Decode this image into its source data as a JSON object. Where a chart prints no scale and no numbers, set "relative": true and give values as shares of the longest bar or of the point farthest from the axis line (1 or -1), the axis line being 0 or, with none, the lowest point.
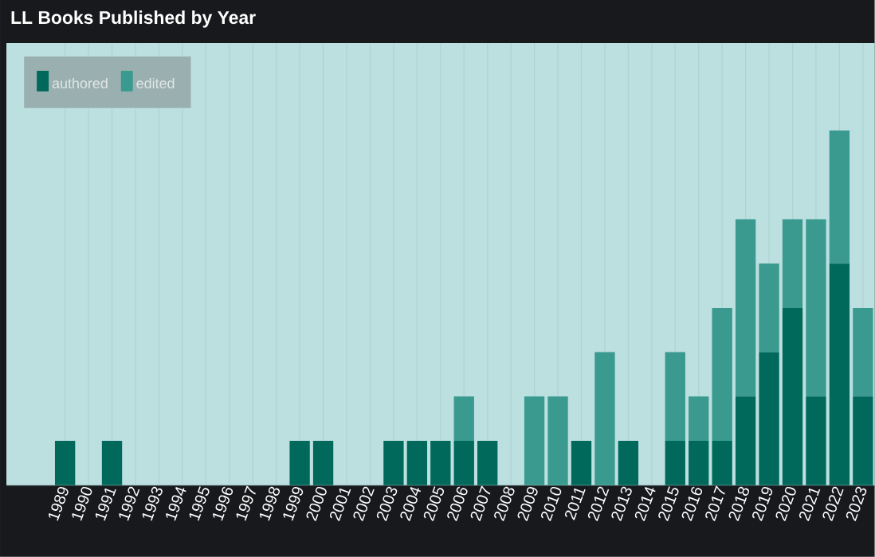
{
  "chart_data": {
    "type": "bar",
    "title": "LL Books Published by Year",
    "categories": [
      "1989",
      "1990",
      "1991",
      "1992",
      "1993",
      "1994",
      "1995",
      "1996",
      "1997",
      "1998",
      "1999",
      "2000",
      "2001",
      "2002",
      "2003",
      "2004",
      "2005",
      "2006",
      "2007",
      "2008",
      "2009",
      "2010",
      "2011",
      "2012",
      "2013",
      "2014",
      "2015",
      "2016",
      "2017",
      "2018",
      "2019",
      "2020",
      "2021",
      "2022",
      "2023"
    ],
    "series": [
      {
        "name": "authored",
        "color": "#00695c",
        "values": [
          0.125,
          0,
          0.125,
          0,
          0,
          0,
          0,
          0,
          0,
          0,
          0.125,
          0.125,
          0,
          0,
          0.125,
          0.125,
          0.125,
          0.125,
          0.125,
          0,
          0,
          0,
          0.125,
          0,
          0.125,
          0,
          0.125,
          0.125,
          0.125,
          0.25,
          0.375,
          0.5,
          0.25,
          0.625,
          0.25
        ]
      },
      {
        "name": "edited",
        "color": "#3a9a8f",
        "values": [
          0,
          0,
          0,
          0,
          0,
          0,
          0,
          0,
          0,
          0,
          0,
          0,
          0,
          0,
          0,
          0,
          0,
          0.125,
          0,
          0,
          0.25,
          0.25,
          0,
          0.375,
          0,
          0,
          0.25,
          0.125,
          0.375,
          0.5,
          0.25,
          0.25,
          0.5,
          0.375,
          0.25
        ]
      }
    ],
    "stacked": true,
    "relative": true,
    "grid": "x",
    "legend": "top left"
  }
}
